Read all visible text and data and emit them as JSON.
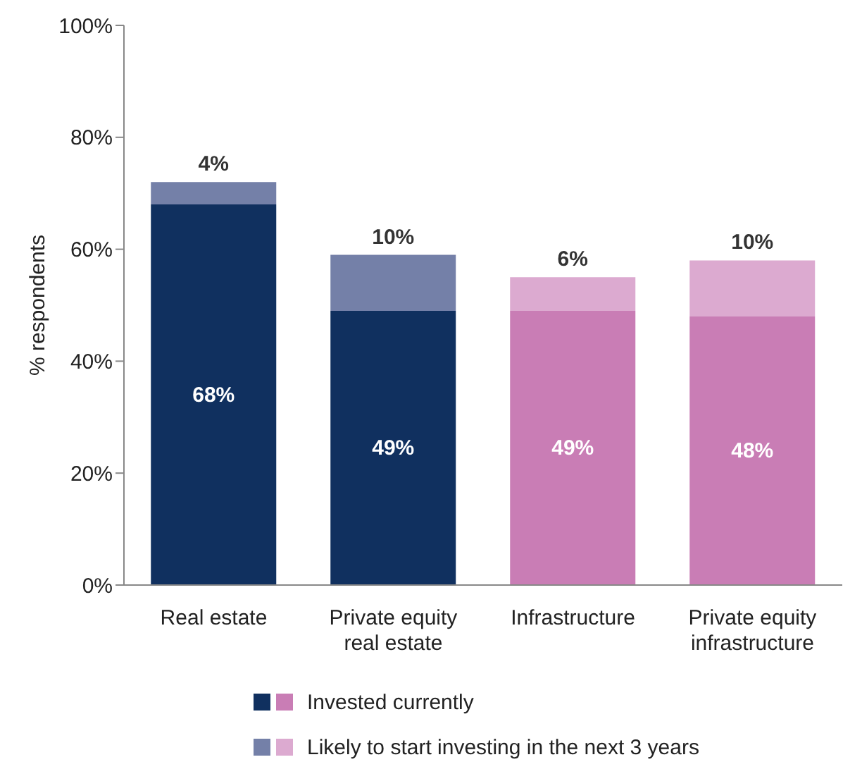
{
  "chart_data": {
    "type": "bar",
    "ylabel": "% respondents",
    "categories": [
      "Real estate",
      "Private equity real estate",
      "Infrastructure",
      "Private equity infrastructure"
    ],
    "series": [
      {
        "name": "Invested currently",
        "colors": [
          "#10305f",
          "#10305f",
          "#c97db5",
          "#c97db5"
        ],
        "values": [
          68,
          49,
          49,
          48
        ]
      },
      {
        "name": "Likely to start investing in the next 3 years",
        "colors": [
          "#7480a8",
          "#7480a8",
          "#dcaad0",
          "#dcaad0"
        ],
        "values": [
          4,
          10,
          6,
          10
        ]
      }
    ],
    "stacked": true,
    "value_labels": [
      [
        "68%",
        "49%",
        "49%",
        "48%"
      ],
      [
        "4%",
        "10%",
        "6%",
        "10%"
      ]
    ],
    "ylim": [
      0,
      100
    ],
    "yticks": [
      {
        "value": 0,
        "label": "0%"
      },
      {
        "value": 20,
        "label": "20%"
      },
      {
        "value": 40,
        "label": "40%"
      },
      {
        "value": 60,
        "label": "60%"
      },
      {
        "value": 80,
        "label": "80%"
      },
      {
        "value": 100,
        "label": "100%"
      }
    ],
    "grid": false,
    "legend": "bottom"
  }
}
